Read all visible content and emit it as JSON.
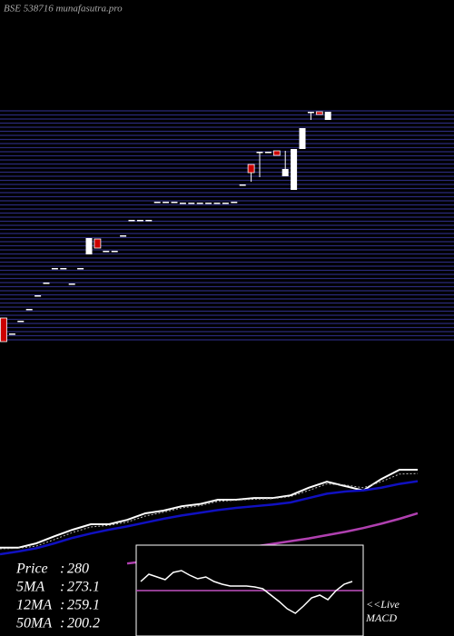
{
  "chart_data": {
    "type": "candlestick",
    "title": "BSE 538716 munafasutra.pro",
    "ylim": [
      129.6,
      282
    ],
    "yticks": [
      282,
      279.3,
      276.6,
      273.9,
      271.2,
      268.5,
      265.8,
      263.1,
      260.4,
      257.7,
      255,
      252.3,
      249.6,
      246.9,
      244.2,
      241.5,
      238.8,
      236.1,
      233.4,
      230.7,
      228,
      225.3,
      222.6,
      219.9,
      217.2,
      214.5,
      211.8,
      209.1,
      206.4,
      203.7,
      201,
      198.3,
      195.6,
      192.9,
      190.2,
      187.5,
      184.8,
      182.1,
      179.4,
      176.7,
      174,
      171.3,
      168.6,
      165.9,
      163.2,
      160.5,
      157.8,
      155.1,
      152.4,
      149.7,
      147,
      144.3,
      141.6,
      138.9,
      136.2,
      133.5,
      130.8
    ],
    "grid": true,
    "grid_color": "#2a2a7a",
    "up_color": "#ffffff",
    "down_color": "#cc0000",
    "candles": [
      {
        "open": 145.2,
        "high": 145.2,
        "low": 129.6,
        "close": 129.6
      },
      {
        "open": 135,
        "high": 135,
        "low": 135,
        "close": 135
      },
      {
        "open": 143.4,
        "high": 143.4,
        "low": 143.4,
        "close": 143.4
      },
      {
        "open": 151.2,
        "high": 151.2,
        "low": 151.2,
        "close": 151.2
      },
      {
        "open": 160.2,
        "high": 160.2,
        "low": 160.2,
        "close": 160.2
      },
      {
        "open": 168.6,
        "high": 168.6,
        "low": 168.6,
        "close": 168.6
      },
      {
        "open": 178.2,
        "high": 178.2,
        "low": 178.2,
        "close": 178.2
      },
      {
        "open": 178.2,
        "high": 178.2,
        "low": 178.2,
        "close": 178.2
      },
      {
        "open": 168,
        "high": 168,
        "low": 168,
        "close": 168
      },
      {
        "open": 178.2,
        "high": 178.2,
        "low": 178.2,
        "close": 178.2
      },
      {
        "open": 187.2,
        "high": 198,
        "low": 187.2,
        "close": 198
      },
      {
        "open": 197.4,
        "high": 197.4,
        "low": 191.4,
        "close": 191.4
      },
      {
        "open": 189.6,
        "high": 189.6,
        "low": 189.6,
        "close": 189.6
      },
      {
        "open": 189.6,
        "high": 189.6,
        "low": 189.6,
        "close": 189.6
      },
      {
        "open": 199.8,
        "high": 199.8,
        "low": 199.8,
        "close": 199.8
      },
      {
        "open": 210,
        "high": 210,
        "low": 210,
        "close": 210
      },
      {
        "open": 210,
        "high": 210,
        "low": 210,
        "close": 210
      },
      {
        "open": 210,
        "high": 210,
        "low": 210,
        "close": 210
      },
      {
        "open": 222,
        "high": 222,
        "low": 222,
        "close": 222
      },
      {
        "open": 222,
        "high": 222,
        "low": 222,
        "close": 222
      },
      {
        "open": 222,
        "high": 222,
        "low": 222,
        "close": 222
      },
      {
        "open": 221.4,
        "high": 221.4,
        "low": 221.4,
        "close": 221.4
      },
      {
        "open": 221.4,
        "high": 221.4,
        "low": 221.4,
        "close": 221.4
      },
      {
        "open": 221.4,
        "high": 221.4,
        "low": 221.4,
        "close": 221.4
      },
      {
        "open": 221.4,
        "high": 221.4,
        "low": 221.4,
        "close": 221.4
      },
      {
        "open": 221.4,
        "high": 221.4,
        "low": 221.4,
        "close": 221.4
      },
      {
        "open": 221.4,
        "high": 221.4,
        "low": 221.4,
        "close": 221.4
      },
      {
        "open": 222,
        "high": 222,
        "low": 222,
        "close": 222
      },
      {
        "open": 233.4,
        "high": 233.4,
        "low": 233.4,
        "close": 233.4
      },
      {
        "open": 246.6,
        "high": 246.6,
        "low": 235.2,
        "close": 241.2
      },
      {
        "open": 255,
        "high": 255,
        "low": 238.2,
        "close": 255
      },
      {
        "open": 255,
        "high": 255,
        "low": 255,
        "close": 255
      },
      {
        "open": 255.6,
        "high": 255.6,
        "low": 252.6,
        "close": 252.6
      },
      {
        "open": 238.8,
        "high": 255.6,
        "low": 238.8,
        "close": 243.6
      },
      {
        "open": 229.8,
        "high": 256.8,
        "low": 229.8,
        "close": 256.8
      },
      {
        "open": 256.8,
        "high": 270.6,
        "low": 256.8,
        "close": 270.6
      },
      {
        "open": 281.4,
        "high": 281.4,
        "low": 276,
        "close": 281.4
      },
      {
        "open": 281.4,
        "high": 281.4,
        "low": 279.6,
        "close": 279.6
      },
      {
        "open": 276,
        "high": 281.4,
        "low": 276,
        "close": 281.4
      }
    ],
    "ma_ylim": [
      -25,
      308.3
    ],
    "ma_series": [
      {
        "name": "Price :",
        "color": "#ffffff",
        "values": [
          137,
          137,
          145,
          158,
          170,
          180,
          180,
          188,
          200,
          205,
          213,
          217,
          225,
          225,
          228,
          228,
          233,
          247,
          258,
          250,
          242,
          263,
          280,
          280
        ]
      },
      {
        "name": "5MA :",
        "color": "#bbbbbb",
        "values": [
          135,
          136,
          140,
          152,
          165,
          175,
          178,
          184,
          195,
          202,
          210,
          214,
          222,
          224,
          226,
          227,
          231,
          242,
          254,
          252,
          247,
          258,
          272,
          273
        ]
      },
      {
        "name": "12MA :",
        "color": "#1010c0",
        "values": [
          125,
          130,
          136,
          145,
          155,
          163,
          170,
          176,
          183,
          190,
          196,
          201,
          206,
          210,
          213,
          216,
          220,
          228,
          236,
          240,
          242,
          247,
          254,
          259
        ]
      },
      {
        "name": "50MA :",
        "color": "#b040b0",
        "values": [
          null,
          null,
          null,
          null,
          null,
          null,
          null,
          108,
          112,
          117,
          121,
          126,
          130,
          134,
          139,
          144,
          149,
          154,
          160,
          166,
          173,
          181,
          190,
          200
        ]
      }
    ],
    "legend": [
      {
        "name": "Price",
        "value": 280
      },
      {
        "name": "5MA",
        "value": 273.1
      },
      {
        "name": "12MA",
        "value": 259.1
      },
      {
        "name": "50MA",
        "value": 200.2
      }
    ],
    "legend_separator": ":",
    "macd": {
      "label_1": "<<Live",
      "label_2": "MACD",
      "ylim": [
        -50,
        50
      ],
      "color": "#ffffff",
      "zero_color": "#c050c0",
      "values": [
        10,
        18,
        15,
        12,
        20,
        22,
        17,
        13,
        15,
        10,
        7,
        5,
        5,
        5,
        4,
        2,
        -5,
        -12,
        -20,
        -25,
        -17,
        -8,
        -5,
        -10,
        0,
        7,
        10
      ]
    }
  }
}
